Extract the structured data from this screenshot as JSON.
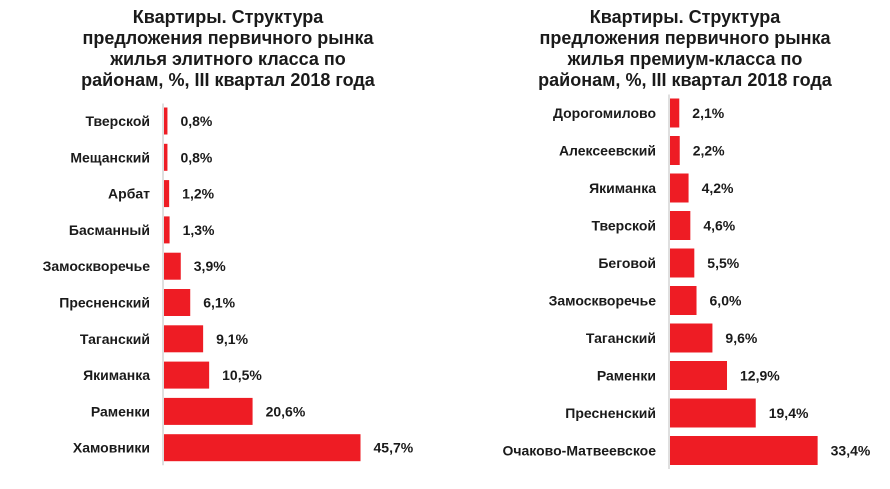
{
  "chart_data": [
    {
      "type": "bar",
      "orientation": "horizontal",
      "title_lines": [
        "Квартиры. Структура",
        "предложения первичного рынка",
        "жилья элитного класса  по",
        "районам, %, III квартал 2018 года"
      ],
      "categories": [
        "Тверской",
        "Мещанский",
        "Арбат",
        "Басманный",
        "Замоскворечье",
        "Пресненский",
        "Таганский",
        "Якиманка",
        "Раменки",
        "Хамовники"
      ],
      "values": [
        0.8,
        0.8,
        1.2,
        1.3,
        3.9,
        6.1,
        9.1,
        10.5,
        20.6,
        45.7
      ],
      "value_labels": [
        "0,8%",
        "0,8%",
        "1,2%",
        "1,3%",
        "3,9%",
        "6,1%",
        "9,1%",
        "10,5%",
        "20,6%",
        "45,7%"
      ],
      "unit": "%",
      "bar_color": "#ee1c24",
      "grid": false
    },
    {
      "type": "bar",
      "orientation": "horizontal",
      "title_lines": [
        "Квартиры. Структура",
        "предложения первичного рынка",
        "жилья премиум-класса  по",
        "районам, %, III квартал 2018 года"
      ],
      "categories": [
        "Дорогомилово",
        "Алексеевский",
        "Якиманка",
        "Тверской",
        "Беговой",
        "Замоскворечье",
        "Таганский",
        "Раменки",
        "Пресненский",
        "Очаково-Матвеевское"
      ],
      "values": [
        2.1,
        2.2,
        4.2,
        4.6,
        5.5,
        6.0,
        9.6,
        12.9,
        19.4,
        33.4
      ],
      "value_labels": [
        "2,1%",
        "2,2%",
        "4,2%",
        "4,6%",
        "5,5%",
        "6,0%",
        "9,6%",
        "12,9%",
        "19,4%",
        "33,4%"
      ],
      "unit": "%",
      "bar_color": "#ee1c24",
      "grid": false
    }
  ]
}
